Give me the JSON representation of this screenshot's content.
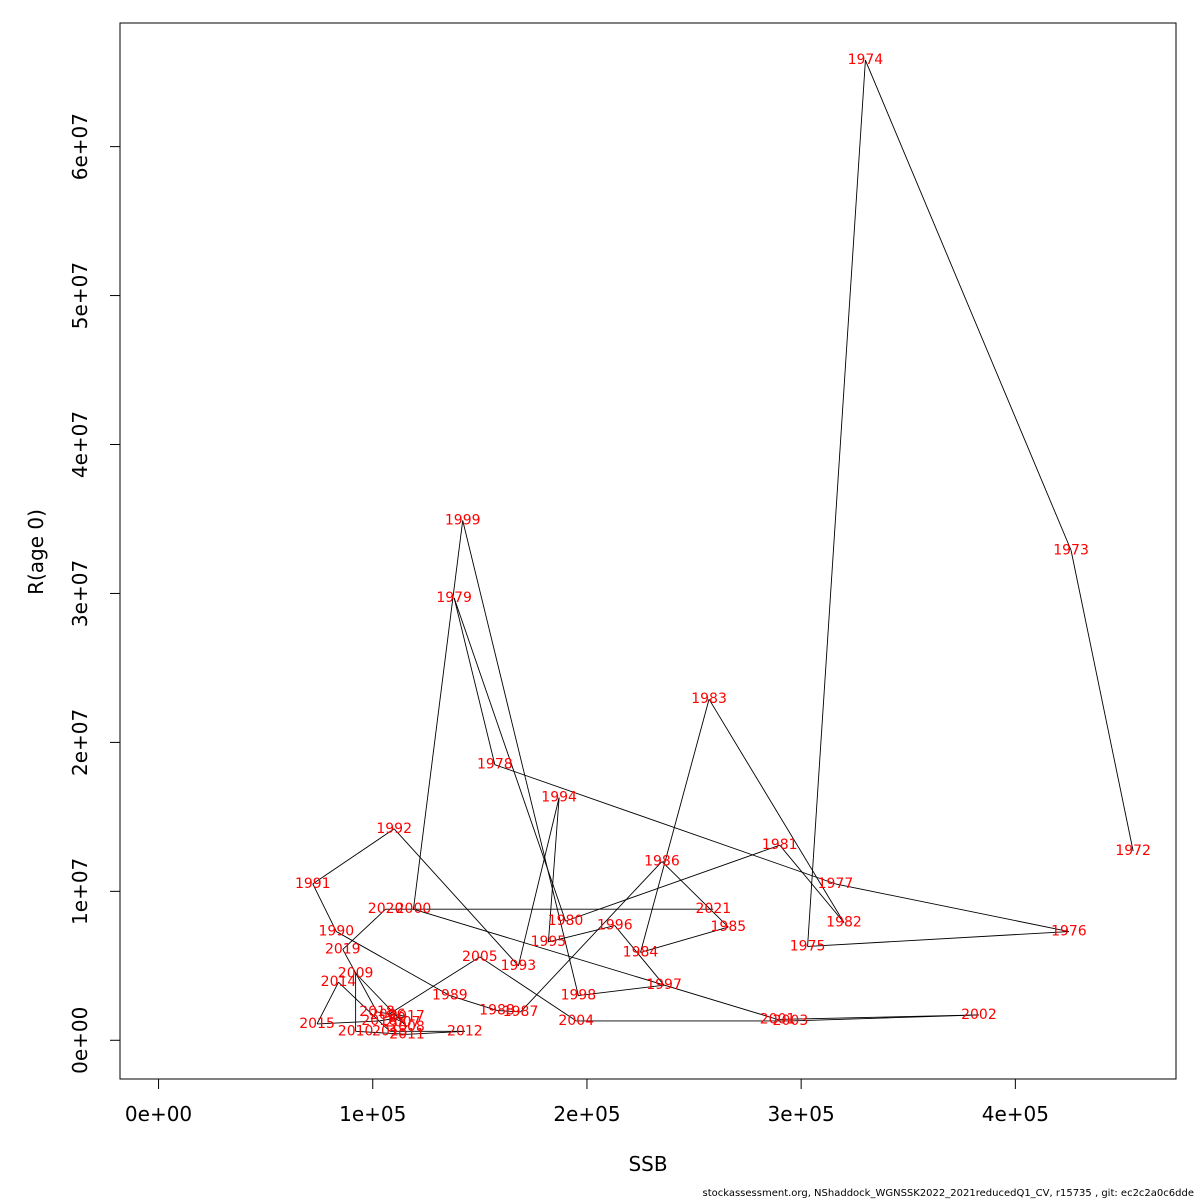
{
  "chart_data": {
    "type": "line",
    "xlabel": "SSB",
    "ylabel": "R(age 0)",
    "xlim": [
      -18000,
      475000
    ],
    "ylim": [
      -2600000,
      68300000
    ],
    "x_ticks": [
      0,
      100000,
      200000,
      300000,
      400000
    ],
    "x_tick_labels": [
      "0e+00",
      "1e+05",
      "2e+05",
      "3e+05",
      "4e+05"
    ],
    "y_ticks": [
      0,
      10000000,
      20000000,
      30000000,
      40000000,
      50000000,
      60000000
    ],
    "y_tick_labels": [
      "0e+00",
      "1e+07",
      "2e+07",
      "3e+07",
      "4e+07",
      "5e+07",
      "6e+07"
    ],
    "grid": false,
    "line_color": "#000000",
    "label_color": "#ff0000",
    "series": [
      {
        "points": [
          {
            "year": "1972",
            "x": 455000,
            "y": 12700000
          },
          {
            "year": "1973",
            "x": 426000,
            "y": 32900000
          },
          {
            "year": "1974",
            "x": 330000,
            "y": 65800000
          },
          {
            "year": "1975",
            "x": 303000,
            "y": 6300000
          },
          {
            "year": "1976",
            "x": 425000,
            "y": 7300000
          },
          {
            "year": "1977",
            "x": 316000,
            "y": 10500000
          },
          {
            "year": "1978",
            "x": 157000,
            "y": 18500000
          },
          {
            "year": "1979",
            "x": 138000,
            "y": 29700000
          },
          {
            "year": "1980",
            "x": 190000,
            "y": 8000000
          },
          {
            "year": "1981",
            "x": 290000,
            "y": 13100000
          },
          {
            "year": "1982",
            "x": 320000,
            "y": 7900000
          },
          {
            "year": "1983",
            "x": 257000,
            "y": 22900000
          },
          {
            "year": "1984",
            "x": 225000,
            "y": 5900000
          },
          {
            "year": "1985",
            "x": 266000,
            "y": 7600000
          },
          {
            "year": "1986",
            "x": 235000,
            "y": 12000000
          },
          {
            "year": "1987",
            "x": 169000,
            "y": 1900000
          },
          {
            "year": "1988",
            "x": 158000,
            "y": 2000000
          },
          {
            "year": "1989",
            "x": 136000,
            "y": 3000000
          },
          {
            "year": "1990",
            "x": 83000,
            "y": 7300000
          },
          {
            "year": "1991",
            "x": 72000,
            "y": 10500000
          },
          {
            "year": "1992",
            "x": 110000,
            "y": 14200000
          },
          {
            "year": "1993",
            "x": 168000,
            "y": 5000000
          },
          {
            "year": "1994",
            "x": 187000,
            "y": 16300000
          },
          {
            "year": "1995",
            "x": 182000,
            "y": 6600000
          },
          {
            "year": "1996",
            "x": 213000,
            "y": 7700000
          },
          {
            "year": "1997",
            "x": 236000,
            "y": 3700000
          },
          {
            "year": "1998",
            "x": 196000,
            "y": 3000000
          },
          {
            "year": "1999",
            "x": 142000,
            "y": 34900000
          },
          {
            "year": "2000",
            "x": 119000,
            "y": 8800000
          },
          {
            "year": "2001",
            "x": 289000,
            "y": 1400000
          },
          {
            "year": "2002",
            "x": 383000,
            "y": 1700000
          },
          {
            "year": "2003",
            "x": 295000,
            "y": 1300000
          },
          {
            "year": "2004",
            "x": 195000,
            "y": 1300000
          },
          {
            "year": "2005",
            "x": 150000,
            "y": 5600000
          },
          {
            "year": "2006",
            "x": 107000,
            "y": 1700000
          },
          {
            "year": "2007",
            "x": 114000,
            "y": 1200000
          },
          {
            "year": "2008",
            "x": 116000,
            "y": 900000
          },
          {
            "year": "2009",
            "x": 92000,
            "y": 4500000
          },
          {
            "year": "2010",
            "x": 92000,
            "y": 600000
          },
          {
            "year": "2011",
            "x": 116000,
            "y": 400000
          },
          {
            "year": "2012",
            "x": 143000,
            "y": 600000
          },
          {
            "year": "2013",
            "x": 108000,
            "y": 600000
          },
          {
            "year": "2014",
            "x": 84000,
            "y": 3900000
          },
          {
            "year": "2015",
            "x": 74000,
            "y": 1100000
          },
          {
            "year": "2016",
            "x": 103000,
            "y": 1300000
          },
          {
            "year": "2017",
            "x": 116000,
            "y": 1600000
          },
          {
            "year": "2018",
            "x": 102000,
            "y": 1900000
          },
          {
            "year": "2019",
            "x": 86000,
            "y": 6100000
          },
          {
            "year": "2020",
            "x": 106000,
            "y": 8800000
          },
          {
            "year": "2021",
            "x": 259000,
            "y": 8800000
          }
        ]
      }
    ]
  },
  "footer": "stockassessment.org, NShaddock_WGNSSK2022_2021reducedQ1_CV, r15735 , git: ec2c2a0c6dde"
}
